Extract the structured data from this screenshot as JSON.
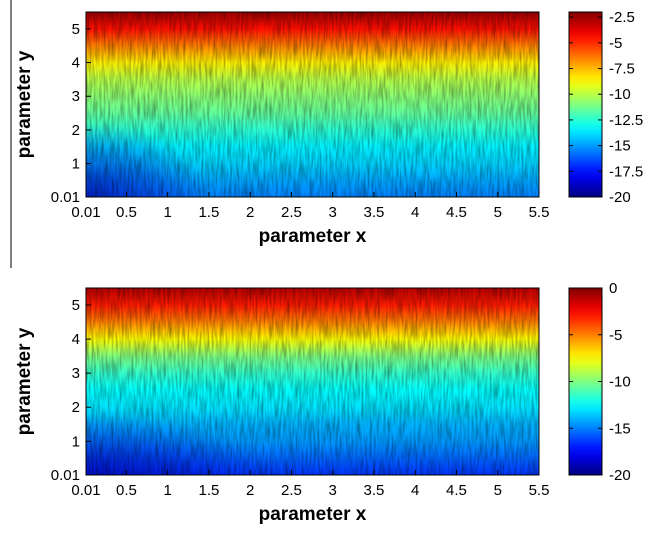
{
  "chart_data": [
    {
      "type": "heatmap",
      "xlabel": "parameter x",
      "ylabel": "parameter y",
      "xlim": [
        0.01,
        5.5
      ],
      "ylim": [
        0.01,
        5.5
      ],
      "xticks": [
        "0.01",
        "0.5",
        "1",
        "1.5",
        "2",
        "2.5",
        "3",
        "3.5",
        "4",
        "4.5",
        "5",
        "5.5"
      ],
      "xtick_values": [
        0.01,
        0.5,
        1,
        1.5,
        2,
        2.5,
        3,
        3.5,
        4,
        4.5,
        5,
        5.5
      ],
      "yticks": [
        "0.01",
        "1",
        "2",
        "3",
        "4",
        "5"
      ],
      "ytick_values": [
        0.01,
        1,
        2,
        3,
        4,
        5
      ],
      "colormap": "jet",
      "colorbar": {
        "range": [
          -20,
          -2
        ],
        "ticks": [
          "-2.5",
          "-5",
          "-7.5",
          "-10",
          "-12.5",
          "-15",
          "-17.5",
          "-20"
        ],
        "tick_values": [
          -2.5,
          -5,
          -7.5,
          -10,
          -12.5,
          -15,
          -17.5,
          -20
        ]
      },
      "value_by_y": {
        "y": [
          0.01,
          0.5,
          1,
          1.5,
          2,
          2.5,
          3,
          3.5,
          4,
          4.5,
          5,
          5.5
        ],
        "value": [
          -15.5,
          -14.8,
          -14.0,
          -13.5,
          -12.5,
          -11.5,
          -10.8,
          -10.0,
          -8.5,
          -6.5,
          -4.5,
          -2.5
        ]
      },
      "dark_region": {
        "x_max": 1.5,
        "y_max": 2.2,
        "value": -17.5
      }
    },
    {
      "type": "heatmap",
      "xlabel": "parameter x",
      "ylabel": "parameter y",
      "xlim": [
        0.01,
        5.5
      ],
      "ylim": [
        0.01,
        5.5
      ],
      "xticks": [
        "0.01",
        "0.5",
        "1",
        "1.5",
        "2",
        "2.5",
        "3",
        "3.5",
        "4",
        "4.5",
        "5",
        "5.5"
      ],
      "xtick_values": [
        0.01,
        0.5,
        1,
        1.5,
        2,
        2.5,
        3,
        3.5,
        4,
        4.5,
        5,
        5.5
      ],
      "yticks": [
        "0.01",
        "1",
        "2",
        "3",
        "4",
        "5"
      ],
      "ytick_values": [
        0.01,
        1,
        2,
        3,
        4,
        5
      ],
      "colormap": "jet",
      "colorbar": {
        "range": [
          -20,
          0
        ],
        "ticks": [
          "0",
          "-5",
          "-10",
          "-15",
          "-20"
        ],
        "tick_values": [
          0,
          -5,
          -10,
          -15,
          -20
        ]
      },
      "value_by_y": {
        "y": [
          0.01,
          0.5,
          1,
          1.5,
          2,
          2.5,
          3,
          3.5,
          4,
          4.5,
          5,
          5.5
        ],
        "value": [
          -16.5,
          -15.5,
          -14.5,
          -14.0,
          -13.0,
          -12.5,
          -11.5,
          -10.0,
          -7.5,
          -5.0,
          -3.0,
          -1.0
        ]
      },
      "dark_region": {
        "x_max": 2.2,
        "y_max": 1.8,
        "value": -17.5
      }
    }
  ]
}
